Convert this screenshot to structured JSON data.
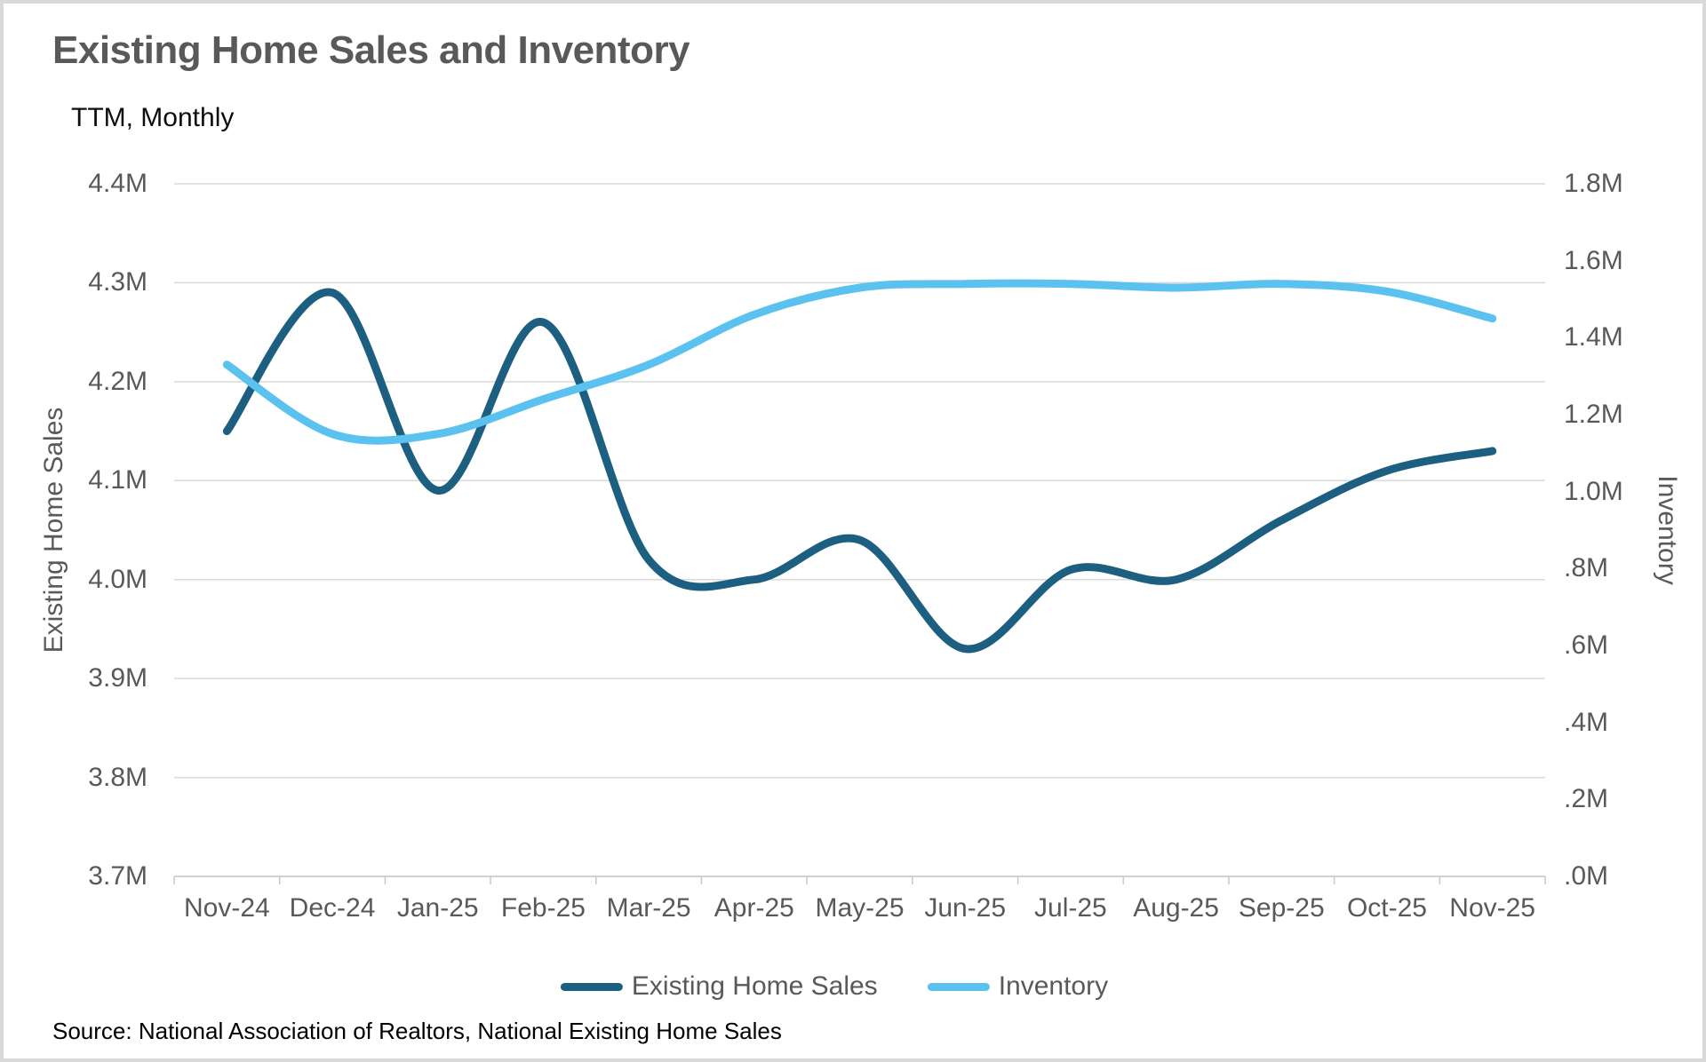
{
  "page": {
    "title": "Existing Home Sales and Inventory",
    "subtitle": "TTM, Monthly",
    "source_note": "Source: National Association of Realtors, National Existing Home Sales"
  },
  "legend": {
    "items": [
      {
        "label": "Existing Home Sales",
        "color": "#1D5F80"
      },
      {
        "label": "Inventory",
        "color": "#5BC2F0"
      }
    ]
  },
  "style": {
    "grid_color": "#D9D9D9",
    "axis_line_color": "#C9C9C9",
    "text_color": "#595959",
    "series_dark": "#1D5F80",
    "series_light": "#5BC2F0"
  },
  "chart_data": {
    "type": "line",
    "smooth": true,
    "grid": "horizontal",
    "legend_position": "bottom",
    "title": "Existing Home Sales and Inventory",
    "subtitle": "TTM, Monthly",
    "categories": [
      "Nov-24",
      "Dec-24",
      "Jan-25",
      "Feb-25",
      "Mar-25",
      "Apr-25",
      "May-25",
      "Jun-25",
      "Jul-25",
      "Aug-25",
      "Sep-25",
      "Oct-25",
      "Nov-25"
    ],
    "series": [
      {
        "name": "Existing Home Sales",
        "axis": "left",
        "color": "#1D5F80",
        "values": [
          4.15,
          4.29,
          4.09,
          4.26,
          4.02,
          4.0,
          4.04,
          3.93,
          4.01,
          4.0,
          4.06,
          4.11,
          4.13
        ]
      },
      {
        "name": "Inventory",
        "axis": "right",
        "color": "#5BC2F0",
        "values": [
          1.33,
          1.15,
          1.15,
          1.24,
          1.33,
          1.46,
          1.53,
          1.54,
          1.54,
          1.53,
          1.54,
          1.52,
          1.45
        ]
      }
    ],
    "left_axis": {
      "title": "Existing Home Sales",
      "min": 3.7,
      "max": 4.4,
      "tick_step": 0.1,
      "ticks": [
        {
          "v": 4.4,
          "label": "4.4M"
        },
        {
          "v": 4.3,
          "label": "4.3M"
        },
        {
          "v": 4.2,
          "label": "4.2M"
        },
        {
          "v": 4.1,
          "label": "4.1M"
        },
        {
          "v": 4.0,
          "label": "4.0M"
        },
        {
          "v": 3.9,
          "label": "3.9M"
        },
        {
          "v": 3.8,
          "label": "3.8M"
        },
        {
          "v": 3.7,
          "label": "3.7M"
        }
      ]
    },
    "right_axis": {
      "title": "Inventory",
      "min": 0.0,
      "max": 1.8,
      "tick_step": 0.2,
      "ticks": [
        {
          "v": 1.8,
          "label": "1.8M"
        },
        {
          "v": 1.6,
          "label": "1.6M"
        },
        {
          "v": 1.4,
          "label": "1.4M"
        },
        {
          "v": 1.2,
          "label": "1.2M"
        },
        {
          "v": 1.0,
          "label": "1.0M"
        },
        {
          "v": 0.8,
          "label": ".8M"
        },
        {
          "v": 0.6,
          "label": ".6M"
        },
        {
          "v": 0.4,
          "label": ".4M"
        },
        {
          "v": 0.2,
          "label": ".2M"
        },
        {
          "v": 0.0,
          "label": ".0M"
        }
      ]
    }
  }
}
